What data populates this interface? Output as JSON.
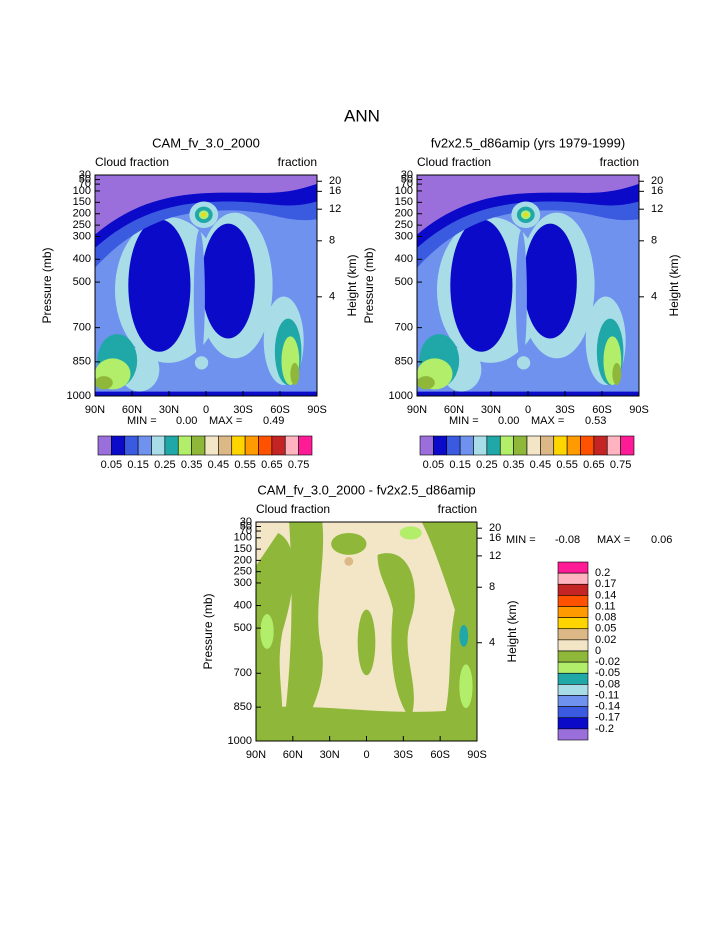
{
  "title": "ANN",
  "chart_data": [
    {
      "type": "contour",
      "title": "CAM_fv_3.0_2000",
      "left_label": "Cloud fraction",
      "right_label": "fraction",
      "ylabel": "Pressure (mb)",
      "y2label": "Height (km)",
      "xlim": [
        90,
        -90
      ],
      "xticks": [
        {
          "value": 90,
          "label": "90N"
        },
        {
          "value": 60,
          "label": "60N"
        },
        {
          "value": 30,
          "label": "30N"
        },
        0,
        {
          "value": -30,
          "label": "30S"
        },
        {
          "value": -60,
          "label": "60S"
        },
        {
          "value": -90,
          "label": "90S"
        }
      ],
      "ylim": [
        1000,
        30
      ],
      "yticks": [
        30,
        50,
        70,
        100,
        150,
        200,
        250,
        300,
        400,
        500,
        700,
        850,
        1000
      ],
      "y2ticks": [
        20,
        16,
        12,
        8,
        4
      ],
      "min_text": "MIN =",
      "min": "0.00",
      "max_text": "MAX =",
      "max": "0.49",
      "colorbar": {
        "lim": [
          0,
          0.8
        ],
        "ticks": [
          0.05,
          0.15,
          0.25,
          0.35,
          0.45,
          0.55,
          0.65,
          0.75
        ],
        "colors": [
          "#9a6fdc",
          "#0a0ac8",
          "#3a5ae0",
          "#6f92ee",
          "#a8dde8",
          "#20a8a8",
          "#b2ee6a",
          "#8fb83a",
          "#f3e6c6",
          "#dcb886",
          "#ffd500",
          "#ff9a00",
          "#ff5200",
          "#c42424",
          "#ffb4c0",
          "#ff1a96"
        ]
      }
    },
    {
      "type": "contour",
      "title": "fv2x2.5_d86amip (yrs 1979-1999)",
      "left_label": "Cloud fraction",
      "right_label": "fraction",
      "ylabel": "Pressure (mb)",
      "y2label": "Height (km)",
      "xlim": [
        90,
        -90
      ],
      "xticks": [
        {
          "value": 90,
          "label": "90N"
        },
        {
          "value": 60,
          "label": "60N"
        },
        {
          "value": 30,
          "label": "30N"
        },
        0,
        {
          "value": -30,
          "label": "30S"
        },
        {
          "value": -60,
          "label": "60S"
        },
        {
          "value": -90,
          "label": "90S"
        }
      ],
      "ylim": [
        1000,
        30
      ],
      "yticks": [
        30,
        50,
        70,
        100,
        150,
        200,
        250,
        300,
        400,
        500,
        700,
        850,
        1000
      ],
      "y2ticks": [
        20,
        16,
        12,
        8,
        4
      ],
      "min_text": "MIN =",
      "min": "0.00",
      "max_text": "MAX =",
      "max": "0.53",
      "colorbar": {
        "lim": [
          0,
          0.8
        ],
        "ticks": [
          0.05,
          0.15,
          0.25,
          0.35,
          0.45,
          0.55,
          0.65,
          0.75
        ],
        "colors": [
          "#9a6fdc",
          "#0a0ac8",
          "#3a5ae0",
          "#6f92ee",
          "#a8dde8",
          "#20a8a8",
          "#b2ee6a",
          "#8fb83a",
          "#f3e6c6",
          "#dcb886",
          "#ffd500",
          "#ff9a00",
          "#ff5200",
          "#c42424",
          "#ffb4c0",
          "#ff1a96"
        ]
      }
    },
    {
      "type": "contour-diff",
      "title": "CAM_fv_3.0_2000 - fv2x2.5_d86amip",
      "left_label": "Cloud fraction",
      "right_label": "fraction",
      "ylabel": "Pressure (mb)",
      "y2label": "Height (km)",
      "xlim": [
        90,
        -90
      ],
      "xticks": [
        {
          "value": 90,
          "label": "90N"
        },
        {
          "value": 60,
          "label": "60N"
        },
        {
          "value": 30,
          "label": "30N"
        },
        0,
        {
          "value": -30,
          "label": "30S"
        },
        {
          "value": -60,
          "label": "60S"
        },
        {
          "value": -90,
          "label": "90S"
        }
      ],
      "ylim": [
        1000,
        30
      ],
      "yticks": [
        30,
        50,
        70,
        100,
        150,
        200,
        250,
        300,
        400,
        500,
        700,
        850,
        1000
      ],
      "y2ticks": [
        20,
        16,
        12,
        8,
        4
      ],
      "min_text": "MIN =",
      "min": "-0.08",
      "max_text": "MAX =",
      "max": "0.06",
      "colorbar": {
        "ticks": [
          0.2,
          0.17,
          0.14,
          0.11,
          0.08,
          0.05,
          0.02,
          0,
          -0.02,
          -0.05,
          -0.08,
          -0.11,
          -0.14,
          -0.17,
          -0.2
        ],
        "colors": [
          "#ff1a96",
          "#ffb4c0",
          "#c42424",
          "#ff5200",
          "#ff9a00",
          "#ffd500",
          "#dcb886",
          "#f3e6c6",
          "#8fb83a",
          "#b2ee6a",
          "#20a8a8",
          "#a8dde8",
          "#6f92ee",
          "#3a5ae0",
          "#0a0ac8",
          "#9a6fdc"
        ]
      }
    }
  ]
}
